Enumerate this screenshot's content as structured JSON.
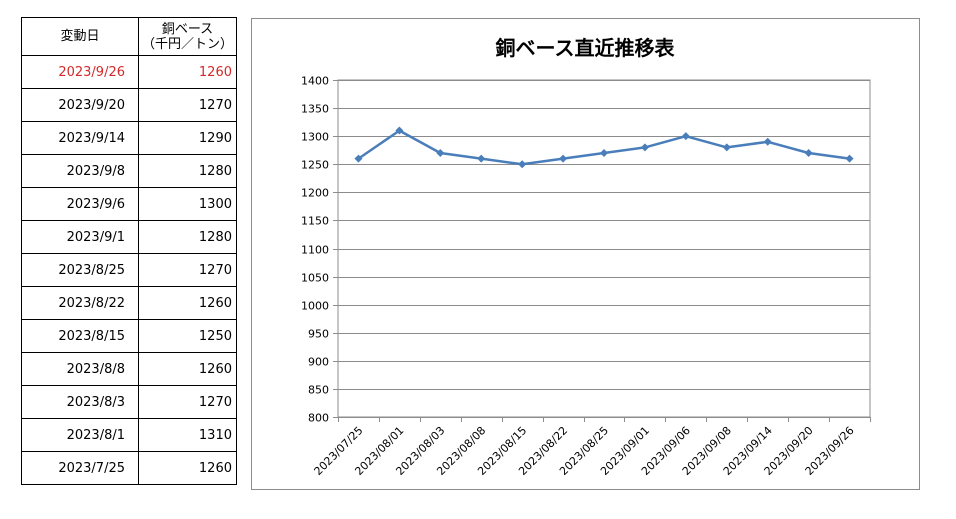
{
  "table": {
    "header_date": "変動日",
    "header_price_line1": "銅ベース",
    "header_price_line2": "（千円／トン）",
    "rows": [
      {
        "date": "2023/9/26",
        "price": "1260"
      },
      {
        "date": "2023/9/20",
        "price": "1270"
      },
      {
        "date": "2023/9/14",
        "price": "1290"
      },
      {
        "date": "2023/9/8",
        "price": "1280"
      },
      {
        "date": "2023/9/6",
        "price": "1300"
      },
      {
        "date": "2023/9/1",
        "price": "1280"
      },
      {
        "date": "2023/8/25",
        "price": "1270"
      },
      {
        "date": "2023/8/22",
        "price": "1260"
      },
      {
        "date": "2023/8/15",
        "price": "1250"
      },
      {
        "date": "2023/8/8",
        "price": "1260"
      },
      {
        "date": "2023/8/3",
        "price": "1270"
      },
      {
        "date": "2023/8/1",
        "price": "1310"
      },
      {
        "date": "2023/7/25",
        "price": "1260"
      }
    ],
    "highlight_color": "#d22a2a"
  },
  "chart_data": {
    "type": "line",
    "title": "銅ベース直近推移表",
    "xlabel": "",
    "ylabel": "",
    "categories": [
      "2023/07/25",
      "2023/08/01",
      "2023/08/03",
      "2023/08/08",
      "2023/08/15",
      "2023/08/22",
      "2023/08/25",
      "2023/09/01",
      "2023/09/06",
      "2023/09/08",
      "2023/09/14",
      "2023/09/20",
      "2023/09/26"
    ],
    "series": [
      {
        "values": [
          1260,
          1310,
          1270,
          1260,
          1250,
          1260,
          1270,
          1280,
          1300,
          1280,
          1290,
          1270,
          1260
        ],
        "color": "#4a7ebb"
      }
    ],
    "ylim": [
      800,
      1400
    ],
    "yticks": [
      800,
      850,
      900,
      950,
      1000,
      1050,
      1100,
      1150,
      1200,
      1250,
      1300,
      1350,
      1400
    ],
    "grid": true,
    "legend": "none",
    "marker": "diamond"
  }
}
